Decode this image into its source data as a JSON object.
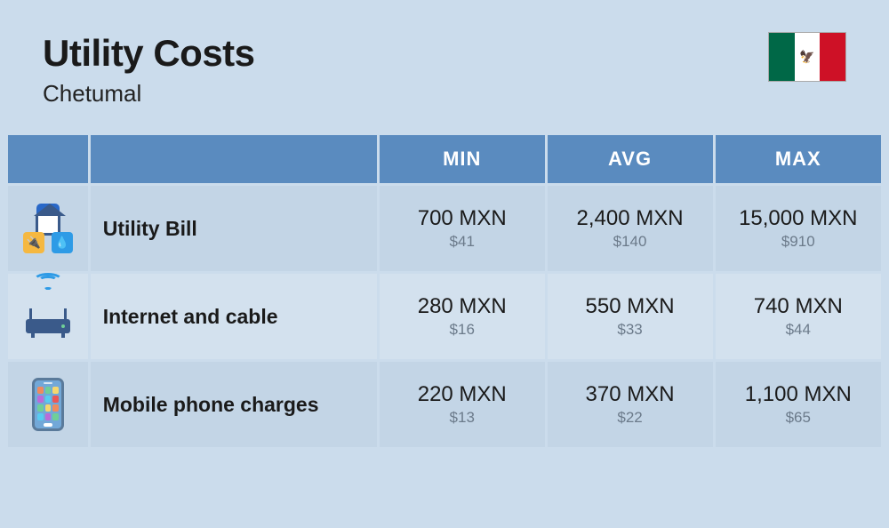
{
  "header": {
    "title": "Utility Costs",
    "subtitle": "Chetumal",
    "flag": {
      "country": "Mexico",
      "colors": [
        "#006847",
        "#ffffff",
        "#ce1126"
      ]
    }
  },
  "colors": {
    "page_bg": "#cbdcec",
    "header_bg": "#5a8bbf",
    "header_text": "#ffffff",
    "row_odd_bg": "#c3d5e6",
    "row_even_bg": "#d3e1ee",
    "primary_text": "#1a1a1a",
    "secondary_text": "#6b7a8a"
  },
  "table": {
    "columns": [
      "",
      "",
      "MIN",
      "AVG",
      "MAX"
    ],
    "rows": [
      {
        "icon": "utility-bill-icon",
        "label": "Utility Bill",
        "min": {
          "local": "700 MXN",
          "usd": "$41"
        },
        "avg": {
          "local": "2,400 MXN",
          "usd": "$140"
        },
        "max": {
          "local": "15,000 MXN",
          "usd": "$910"
        }
      },
      {
        "icon": "router-icon",
        "label": "Internet and cable",
        "min": {
          "local": "280 MXN",
          "usd": "$16"
        },
        "avg": {
          "local": "550 MXN",
          "usd": "$33"
        },
        "max": {
          "local": "740 MXN",
          "usd": "$44"
        }
      },
      {
        "icon": "phone-icon",
        "label": "Mobile phone charges",
        "min": {
          "local": "220 MXN",
          "usd": "$13"
        },
        "avg": {
          "local": "370 MXN",
          "usd": "$22"
        },
        "max": {
          "local": "1,100 MXN",
          "usd": "$65"
        }
      }
    ]
  },
  "typography": {
    "title_fontsize": 42,
    "subtitle_fontsize": 26,
    "header_fontsize": 22,
    "label_fontsize": 23,
    "primary_fontsize": 24,
    "secondary_fontsize": 17
  }
}
